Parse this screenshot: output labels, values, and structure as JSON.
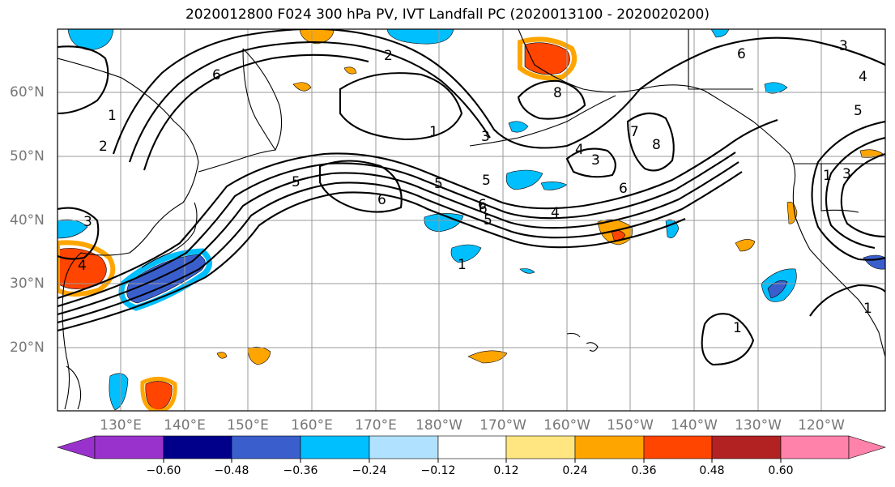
{
  "title": "2020012800 F024 300 hPa PV, IVT Landfall PC (2020013100 - 2020020200)",
  "axes": {
    "lon_ticks": [
      "130°E",
      "140°E",
      "150°E",
      "160°E",
      "170°E",
      "180°W",
      "170°W",
      "160°W",
      "150°W",
      "140°W",
      "130°W",
      "120°W"
    ],
    "lat_ticks": [
      "60°N",
      "50°N",
      "40°N",
      "30°N",
      "20°N"
    ],
    "lon_range": [
      120,
      250
    ],
    "lat_range": [
      10,
      70
    ],
    "grid": true
  },
  "colorbar": {
    "ticks": [
      "−0.60",
      "−0.48",
      "−0.36",
      "−0.24",
      "−0.12",
      "0.12",
      "0.24",
      "0.36",
      "0.48",
      "0.60"
    ],
    "colors": [
      "#9932CC",
      "#00008B",
      "#3A5FCD",
      "#00BFFF",
      "#B0E2FF",
      "#FFFFFF",
      "#FFE680",
      "#FFA500",
      "#FF4500",
      "#B22222",
      "#FF82AB"
    ],
    "extend": "both"
  },
  "contour_labels": [
    "6",
    "2",
    "1",
    "5",
    "2",
    "1",
    "1",
    "3",
    "4",
    "5",
    "6",
    "3",
    "8",
    "4",
    "3",
    "7",
    "8",
    "6",
    "6",
    "5",
    "4",
    "5",
    "6",
    "1",
    "1",
    "3",
    "4",
    "3",
    "1",
    "5",
    "6"
  ],
  "colors": {
    "contour": "#000000",
    "grid": "#9a9a9a",
    "coast": "#000000",
    "axis_label": "#777777"
  }
}
